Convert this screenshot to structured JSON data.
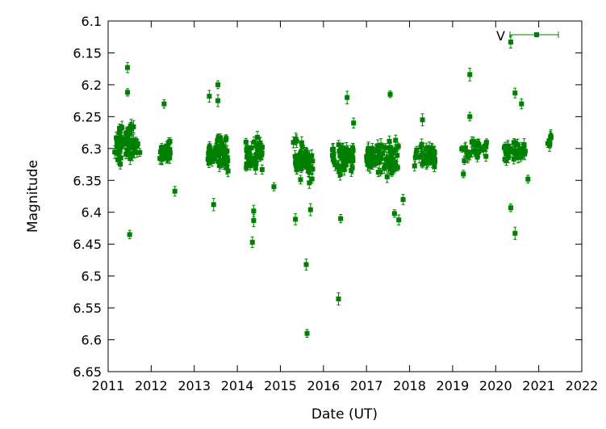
{
  "chart_data": {
    "type": "scatter",
    "xlabel": "Date (UT)",
    "ylabel": "Magnitude",
    "xlim": [
      2011,
      2022
    ],
    "ylim": [
      6.1,
      6.65
    ],
    "y_inverted": true,
    "grid": false,
    "legend": {
      "position": "top-right",
      "entries": [
        "V"
      ]
    },
    "xticks": [
      "2011",
      "2012",
      "2013",
      "2014",
      "2015",
      "2016",
      "2017",
      "2018",
      "2019",
      "2020",
      "2021",
      "2022"
    ],
    "yticks": [
      "6.1",
      "6.15",
      "6.2",
      "6.25",
      "6.3",
      "6.35",
      "6.4",
      "6.45",
      "6.5",
      "6.55",
      "6.6",
      "6.65"
    ],
    "series": [
      {
        "name": "V",
        "color": "#008000",
        "marker": "square",
        "error_bars": true,
        "clusters": [
          {
            "x_start": 2011.15,
            "x_end": 2011.6,
            "y_mean": 6.29,
            "y_spread": 0.04,
            "count": 60
          },
          {
            "x_start": 2011.6,
            "x_end": 2011.75,
            "y_mean": 6.3,
            "y_spread": 0.03,
            "count": 10
          },
          {
            "x_start": 2012.2,
            "x_end": 2012.45,
            "y_mean": 6.305,
            "y_spread": 0.025,
            "count": 35
          },
          {
            "x_start": 2013.3,
            "x_end": 2013.8,
            "y_mean": 6.31,
            "y_spread": 0.035,
            "count": 55
          },
          {
            "x_start": 2014.2,
            "x_end": 2014.6,
            "y_mean": 6.31,
            "y_spread": 0.035,
            "count": 50
          },
          {
            "x_start": 2015.3,
            "x_end": 2015.75,
            "y_mean": 6.32,
            "y_spread": 0.04,
            "count": 55
          },
          {
            "x_start": 2016.2,
            "x_end": 2016.7,
            "y_mean": 6.315,
            "y_spread": 0.035,
            "count": 55
          },
          {
            "x_start": 2017.0,
            "x_end": 2017.75,
            "y_mean": 6.315,
            "y_spread": 0.035,
            "count": 80
          },
          {
            "x_start": 2018.1,
            "x_end": 2018.6,
            "y_mean": 6.31,
            "y_spread": 0.025,
            "count": 45
          },
          {
            "x_start": 2019.2,
            "x_end": 2019.8,
            "y_mean": 6.3,
            "y_spread": 0.025,
            "count": 30
          },
          {
            "x_start": 2020.2,
            "x_end": 2020.7,
            "y_mean": 6.305,
            "y_spread": 0.025,
            "count": 35
          },
          {
            "x_start": 2021.2,
            "x_end": 2021.3,
            "y_mean": 6.29,
            "y_spread": 0.015,
            "count": 8
          }
        ],
        "points": [
          {
            "x": 2011.45,
            "y": 6.173
          },
          {
            "x": 2011.45,
            "y": 6.212
          },
          {
            "x": 2011.5,
            "y": 6.435
          },
          {
            "x": 2012.3,
            "y": 6.23
          },
          {
            "x": 2012.55,
            "y": 6.367
          },
          {
            "x": 2013.35,
            "y": 6.218
          },
          {
            "x": 2013.45,
            "y": 6.388
          },
          {
            "x": 2013.55,
            "y": 6.2
          },
          {
            "x": 2013.55,
            "y": 6.225
          },
          {
            "x": 2014.35,
            "y": 6.447
          },
          {
            "x": 2014.38,
            "y": 6.413
          },
          {
            "x": 2014.38,
            "y": 6.398
          },
          {
            "x": 2014.85,
            "y": 6.36
          },
          {
            "x": 2015.35,
            "y": 6.411
          },
          {
            "x": 2015.6,
            "y": 6.482
          },
          {
            "x": 2015.62,
            "y": 6.59
          },
          {
            "x": 2015.7,
            "y": 6.396
          },
          {
            "x": 2016.35,
            "y": 6.536
          },
          {
            "x": 2016.4,
            "y": 6.41
          },
          {
            "x": 2016.55,
            "y": 6.22
          },
          {
            "x": 2016.7,
            "y": 6.26
          },
          {
            "x": 2017.55,
            "y": 6.215
          },
          {
            "x": 2017.65,
            "y": 6.402
          },
          {
            "x": 2017.75,
            "y": 6.412
          },
          {
            "x": 2017.85,
            "y": 6.38
          },
          {
            "x": 2018.3,
            "y": 6.255
          },
          {
            "x": 2019.4,
            "y": 6.184
          },
          {
            "x": 2019.4,
            "y": 6.25
          },
          {
            "x": 2019.25,
            "y": 6.34
          },
          {
            "x": 2020.35,
            "y": 6.133
          },
          {
            "x": 2020.35,
            "y": 6.393
          },
          {
            "x": 2020.45,
            "y": 6.213
          },
          {
            "x": 2020.45,
            "y": 6.433
          },
          {
            "x": 2020.6,
            "y": 6.23
          },
          {
            "x": 2020.75,
            "y": 6.348
          }
        ]
      }
    ]
  }
}
